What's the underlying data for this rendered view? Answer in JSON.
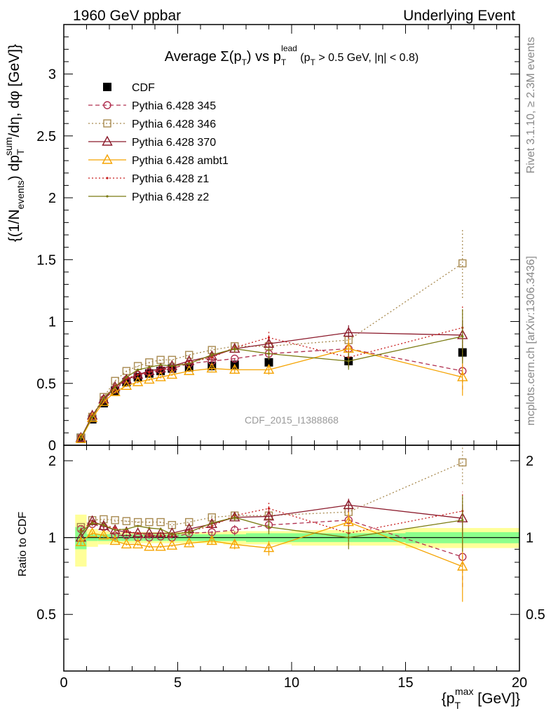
{
  "header": {
    "left": "1960 GeV ppbar",
    "right": "Underlying Event"
  },
  "side_labels": {
    "rivet": "Rivet 3.1.10, ≥ 2.3M events",
    "mcplots": "mcplots.cern.ch [arXiv:1306.3436]"
  },
  "watermark": "CDF_2015_I1388868",
  "chart_data": [
    {
      "type": "scatter",
      "title": "Average Σ(p_T) vs p_T^lead (p_T > 0.5 GeV, |η| < 0.8)",
      "xlabel": "{p_T^max [GeV]}",
      "ylabel": "{(1/N_events) dp_T^sum/dη, dφ [GeV]}",
      "xlim": [
        0,
        20
      ],
      "ylim": [
        0,
        3.4
      ],
      "yticks": [
        "0",
        "0.5",
        "1",
        "1.5",
        "2",
        "2.5",
        "3"
      ],
      "xticks": [
        "0",
        "5",
        "10",
        "15",
        "20"
      ],
      "x": [
        0.75,
        1.25,
        1.75,
        2.25,
        2.75,
        3.25,
        3.75,
        4.25,
        4.75,
        5.5,
        6.5,
        7.5,
        9.0,
        12.5,
        17.5
      ],
      "series": [
        {
          "name": "CDF",
          "color": "#000000",
          "marker": "square-filled",
          "line": "none",
          "values": [
            0.06,
            0.21,
            0.34,
            0.44,
            0.51,
            0.55,
            0.58,
            0.6,
            0.62,
            0.63,
            0.64,
            0.65,
            0.67,
            0.68,
            0.75
          ],
          "errors": [
            0.01,
            0.01,
            0.01,
            0.01,
            0.01,
            0.01,
            0.01,
            0.01,
            0.02,
            0.02,
            0.02,
            0.02,
            0.03,
            0.05,
            0.06
          ]
        },
        {
          "name": "Pythia 6.428 345",
          "color": "#b03050",
          "marker": "circle-open",
          "line": "dashed",
          "values": [
            0.06,
            0.23,
            0.37,
            0.45,
            0.53,
            0.57,
            0.59,
            0.61,
            0.62,
            0.66,
            0.68,
            0.7,
            0.74,
            0.78,
            0.6
          ],
          "errors": [
            0.01,
            0.01,
            0.01,
            0.01,
            0.01,
            0.01,
            0.01,
            0.01,
            0.01,
            0.01,
            0.02,
            0.03,
            0.05,
            0.07,
            0.15
          ]
        },
        {
          "name": "Pythia 6.428 346",
          "color": "#a88a50",
          "marker": "square-open",
          "line": "dotted",
          "values": [
            0.06,
            0.23,
            0.39,
            0.52,
            0.6,
            0.64,
            0.67,
            0.69,
            0.69,
            0.73,
            0.77,
            0.8,
            0.8,
            0.85,
            1.47
          ],
          "errors": [
            0.01,
            0.01,
            0.01,
            0.01,
            0.01,
            0.01,
            0.01,
            0.01,
            0.01,
            0.01,
            0.02,
            0.03,
            0.05,
            0.07,
            0.28
          ]
        },
        {
          "name": "Pythia 6.428 370",
          "color": "#8b1a2b",
          "marker": "triangle-open",
          "line": "solid",
          "values": [
            0.06,
            0.24,
            0.37,
            0.47,
            0.53,
            0.57,
            0.6,
            0.62,
            0.64,
            0.68,
            0.72,
            0.78,
            0.82,
            0.91,
            0.89
          ],
          "errors": [
            0.01,
            0.01,
            0.01,
            0.01,
            0.01,
            0.01,
            0.01,
            0.01,
            0.01,
            0.01,
            0.02,
            0.03,
            0.04,
            0.06,
            0.12
          ]
        },
        {
          "name": "Pythia 6.428 ambt1",
          "color": "#f5a300",
          "marker": "triangle-open",
          "line": "solid",
          "values": [
            0.05,
            0.22,
            0.35,
            0.43,
            0.48,
            0.51,
            0.53,
            0.55,
            0.57,
            0.6,
            0.62,
            0.61,
            0.61,
            0.78,
            0.55
          ],
          "errors": [
            0.01,
            0.01,
            0.01,
            0.01,
            0.01,
            0.01,
            0.01,
            0.01,
            0.01,
            0.01,
            0.02,
            0.03,
            0.04,
            0.08,
            0.15
          ]
        },
        {
          "name": "Pythia 6.428 z1",
          "color": "#c81e1e",
          "marker": "dot",
          "line": "dotted",
          "values": [
            0.06,
            0.24,
            0.38,
            0.48,
            0.54,
            0.57,
            0.59,
            0.61,
            0.63,
            0.67,
            0.71,
            0.79,
            0.87,
            0.71,
            0.95
          ],
          "errors": [
            0.01,
            0.01,
            0.01,
            0.01,
            0.01,
            0.01,
            0.01,
            0.01,
            0.01,
            0.01,
            0.02,
            0.03,
            0.05,
            0.07,
            0.18
          ]
        },
        {
          "name": "Pythia 6.428 z2",
          "color": "#7a7a10",
          "marker": "dot",
          "line": "solid",
          "values": [
            0.06,
            0.23,
            0.38,
            0.47,
            0.55,
            0.61,
            0.63,
            0.65,
            0.64,
            0.66,
            0.73,
            0.78,
            0.74,
            0.68,
            0.88
          ],
          "errors": [
            0.01,
            0.01,
            0.01,
            0.01,
            0.01,
            0.01,
            0.01,
            0.01,
            0.01,
            0.01,
            0.02,
            0.03,
            0.05,
            0.07,
            0.22
          ]
        }
      ],
      "legend": "top-left"
    },
    {
      "type": "scatter",
      "title": "",
      "xlabel": "{p_T^max [GeV]}",
      "ylabel": "Ratio to CDF",
      "xlim": [
        0,
        20
      ],
      "ylim": [
        0.3,
        2.3
      ],
      "yticks_left": [
        "0.5",
        "1",
        "2"
      ],
      "yticks_right": [
        "0.5",
        "1",
        "2"
      ],
      "x": [
        0.75,
        1.25,
        1.75,
        2.25,
        2.75,
        3.25,
        3.75,
        4.25,
        4.75,
        5.5,
        6.5,
        7.5,
        9.0,
        12.5,
        17.5
      ],
      "bands": {
        "x_edges": [
          0.5,
          1.0,
          1.5,
          2.0,
          2.5,
          3.0,
          3.5,
          4.0,
          4.5,
          5.0,
          6.0,
          7.0,
          8.0,
          10.0,
          15.0,
          20.0
        ],
        "stat_lo": [
          0.9,
          0.97,
          0.97,
          0.97,
          0.97,
          0.97,
          0.97,
          0.97,
          0.97,
          0.97,
          0.97,
          0.97,
          0.96,
          0.96,
          0.95
        ],
        "stat_hi": [
          1.1,
          1.03,
          1.03,
          1.03,
          1.03,
          1.03,
          1.03,
          1.03,
          1.03,
          1.03,
          1.03,
          1.03,
          1.04,
          1.04,
          1.05
        ],
        "tot_lo": [
          0.77,
          0.92,
          0.94,
          0.95,
          0.95,
          0.95,
          0.95,
          0.95,
          0.95,
          0.95,
          0.95,
          0.94,
          0.94,
          0.93,
          0.91
        ],
        "tot_hi": [
          1.23,
          1.08,
          1.06,
          1.05,
          1.05,
          1.05,
          1.05,
          1.05,
          1.05,
          1.05,
          1.05,
          1.06,
          1.06,
          1.07,
          1.09
        ],
        "stat_color": "#8cff8c",
        "tot_color": "#ffff99"
      },
      "series": [
        {
          "name": "Pythia 6.428 345",
          "color": "#b03050",
          "marker": "circle-open",
          "line": "dashed",
          "values": [
            1.08,
            1.13,
            1.1,
            1.02,
            1.02,
            1.0,
            1.0,
            1.01,
            1.0,
            1.04,
            1.05,
            1.07,
            1.12,
            1.17,
            0.84
          ],
          "errors": [
            0.03,
            0.02,
            0.02,
            0.01,
            0.01,
            0.01,
            0.01,
            0.01,
            0.01,
            0.02,
            0.03,
            0.05,
            0.07,
            0.1,
            0.2
          ]
        },
        {
          "name": "Pythia 6.428 346",
          "color": "#a88a50",
          "marker": "square-open",
          "line": "dotted",
          "values": [
            1.1,
            1.17,
            1.18,
            1.17,
            1.16,
            1.15,
            1.15,
            1.15,
            1.12,
            1.15,
            1.2,
            1.22,
            1.22,
            1.26,
            1.97
          ],
          "errors": [
            0.03,
            0.02,
            0.02,
            0.02,
            0.01,
            0.01,
            0.01,
            0.01,
            0.02,
            0.02,
            0.03,
            0.04,
            0.07,
            0.1,
            0.35
          ]
        },
        {
          "name": "Pythia 6.428 370",
          "color": "#8b1a2b",
          "marker": "triangle-open",
          "line": "solid",
          "values": [
            1.0,
            1.16,
            1.11,
            1.07,
            1.05,
            1.04,
            1.04,
            1.04,
            1.04,
            1.08,
            1.13,
            1.2,
            1.21,
            1.34,
            1.19
          ],
          "errors": [
            0.03,
            0.02,
            0.02,
            0.01,
            0.01,
            0.01,
            0.01,
            0.01,
            0.01,
            0.02,
            0.03,
            0.04,
            0.06,
            0.08,
            0.16
          ]
        },
        {
          "name": "Pythia 6.428 ambt1",
          "color": "#f5a300",
          "marker": "triangle-open",
          "line": "solid",
          "values": [
            0.96,
            1.04,
            1.02,
            0.97,
            0.94,
            0.94,
            0.92,
            0.92,
            0.93,
            0.95,
            0.97,
            0.94,
            0.91,
            1.15,
            0.77
          ],
          "errors": [
            0.03,
            0.02,
            0.02,
            0.01,
            0.01,
            0.01,
            0.01,
            0.01,
            0.01,
            0.02,
            0.03,
            0.04,
            0.06,
            0.11,
            0.21
          ]
        },
        {
          "name": "Pythia 6.428 z1",
          "color": "#c81e1e",
          "marker": "dot",
          "line": "dotted",
          "values": [
            1.07,
            1.15,
            1.12,
            1.09,
            1.06,
            1.04,
            1.02,
            1.02,
            1.02,
            1.06,
            1.11,
            1.22,
            1.3,
            1.04,
            1.27
          ],
          "errors": [
            0.03,
            0.02,
            0.02,
            0.01,
            0.01,
            0.01,
            0.01,
            0.01,
            0.01,
            0.02,
            0.03,
            0.04,
            0.07,
            0.1,
            0.24
          ]
        },
        {
          "name": "Pythia 6.428 z2",
          "color": "#7a7a10",
          "marker": "dot",
          "line": "solid",
          "values": [
            1.05,
            1.14,
            1.12,
            1.07,
            1.08,
            1.11,
            1.09,
            1.08,
            1.03,
            1.05,
            1.14,
            1.2,
            1.1,
            1.0,
            1.17
          ],
          "errors": [
            0.03,
            0.02,
            0.02,
            0.01,
            0.01,
            0.01,
            0.01,
            0.01,
            0.01,
            0.02,
            0.03,
            0.04,
            0.07,
            0.1,
            0.29
          ]
        }
      ]
    }
  ]
}
